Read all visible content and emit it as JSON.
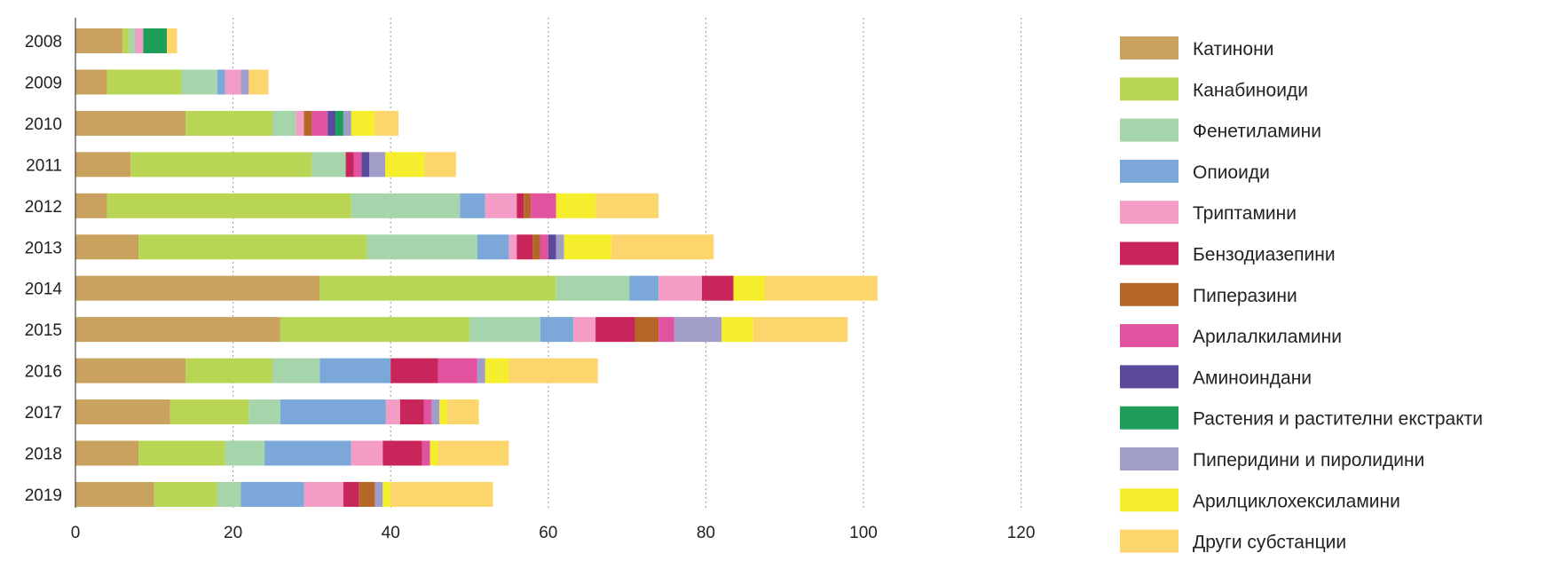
{
  "chart_data": {
    "type": "bar",
    "orientation": "horizontal",
    "stacked": true,
    "title": "",
    "xlabel": "",
    "ylabel": "",
    "xlim": [
      0,
      120
    ],
    "x_ticks": [
      0,
      20,
      40,
      60,
      80,
      100,
      120
    ],
    "grid": "vertical-dotted",
    "legend_position": "right",
    "categories": [
      "2008",
      "2009",
      "2010",
      "2011",
      "2012",
      "2013",
      "2014",
      "2015",
      "2016",
      "2017",
      "2018",
      "2019"
    ],
    "series": [
      {
        "name": "Катинони",
        "color": "#C8A25E",
        "values": [
          6,
          4,
          14,
          7,
          4,
          8,
          31,
          26,
          14,
          12,
          8,
          10
        ]
      },
      {
        "name": "Канабиноиди",
        "color": "#B8D654",
        "values": [
          0.8,
          9.5,
          11,
          23,
          31,
          29,
          30,
          24,
          11,
          10,
          11,
          8
        ]
      },
      {
        "name": "Фенетиламини",
        "color": "#A6D5AB",
        "values": [
          0.8,
          4.5,
          3,
          4.3,
          13.8,
          14,
          9.3,
          9,
          6,
          4,
          5,
          3
        ]
      },
      {
        "name": "Опиоиди",
        "color": "#7BA7D9",
        "values": [
          0,
          1,
          0,
          0,
          3.2,
          4,
          3.7,
          4.2,
          9,
          13.4,
          11,
          8
        ]
      },
      {
        "name": "Триптамини",
        "color": "#F39DC6",
        "values": [
          1,
          2,
          1,
          0,
          4,
          1,
          5.5,
          2.8,
          0,
          1.8,
          4,
          5
        ]
      },
      {
        "name": "Бензодиазепини",
        "color": "#C8265A",
        "values": [
          0,
          0,
          0,
          1,
          0.9,
          2,
          4,
          5,
          6,
          3,
          5,
          2
        ]
      },
      {
        "name": "Пиперазини",
        "color": "#B5672A",
        "values": [
          0,
          0,
          1,
          0,
          0.9,
          1,
          0,
          3,
          0,
          0,
          0,
          2
        ]
      },
      {
        "name": "Арилалкиламини",
        "color": "#E2539F",
        "values": [
          0,
          0,
          2,
          1,
          3.2,
          1,
          0,
          2,
          5,
          1,
          1,
          0
        ]
      },
      {
        "name": "Аминоиндани",
        "color": "#5B4A9A",
        "values": [
          0,
          0,
          1,
          1,
          0,
          1,
          0,
          0,
          0,
          0,
          0,
          0
        ]
      },
      {
        "name": "Растения и растителни екстракти",
        "color": "#1F9E5A",
        "values": [
          3,
          0,
          1,
          0,
          0,
          0,
          0,
          0,
          0,
          0,
          0,
          0
        ]
      },
      {
        "name": "Пиперидини и пиролидини",
        "color": "#A09DC8",
        "values": [
          0,
          1,
          1,
          2,
          0,
          1,
          0,
          6,
          1,
          1,
          0,
          1
        ]
      },
      {
        "name": "Арилциклохексиламини",
        "color": "#F5EE2D",
        "values": [
          0,
          0,
          3,
          5,
          5,
          6,
          4,
          4,
          3,
          1,
          1,
          1
        ]
      },
      {
        "name": "Други субстанции",
        "color": "#FCD56D",
        "values": [
          1.3,
          2.5,
          3,
          4,
          8,
          13,
          14.3,
          12,
          11.3,
          4,
          9,
          13
        ]
      }
    ]
  }
}
